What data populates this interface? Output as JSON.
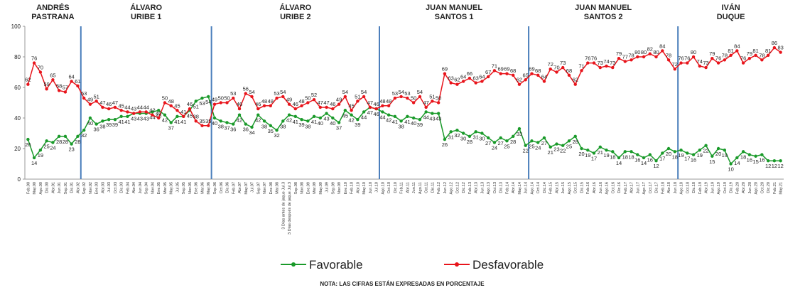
{
  "chart_data": {
    "type": "line",
    "note": "NOTA: LAS CIFRAS ESTÁN EXPRESADAS EN PORCENTAJE",
    "eras": [
      {
        "lines": [
          "ANDRÉS",
          "PASTRANA"
        ],
        "start": 0
      },
      {
        "lines": [
          "ÁLVARO",
          "URIBE 1"
        ],
        "start": 9
      },
      {
        "lines": [
          "ÁLVARO",
          "URIBE 2"
        ],
        "start": 30
      },
      {
        "lines": [
          "JUAN MANUEL",
          "SANTOS 1"
        ],
        "start": 57
      },
      {
        "lines": [
          "JUAN MANUEL",
          "SANTOS 2"
        ],
        "start": 81
      },
      {
        "lines": [
          "IVÁN",
          "DUQUE"
        ],
        "start": 105
      }
    ],
    "categories": [
      "Feb.00",
      "May.00",
      "Ago.00",
      "Dic.00",
      "Abr.01",
      "Jun.01",
      "Sep.01",
      "Dic.01",
      "Abr.02",
      "Sep.02",
      "Nov.02",
      "Ene.03",
      "Abr.03",
      "Jul.03",
      "Oct.03",
      "Dic.03",
      "Feb.04",
      "Abr.04",
      "Jun.04",
      "Sep.04",
      "Nov.04",
      "Ene.05",
      "Mar.05",
      "May.05",
      "Jul.05",
      "Sep.05",
      "Nov.05",
      "Ene.06",
      "Mar.06",
      "May.06",
      "Sep.06",
      "Oct.06",
      "Dic.06",
      "Feb.07",
      "Abr.07",
      "May.07",
      "Jul.07",
      "Sep.07",
      "Nov.07",
      "Ene.08",
      "Mar.08",
      "3 Días antes de jaque Jul.3",
      "3 Días después de jaque Jul.3",
      "Sep.08",
      "Nov.08",
      "Ene.09",
      "Mar.09",
      "May.09",
      "Jul.09",
      "Sep.09",
      "Nov.09",
      "Ene.10",
      "Feb.10",
      "Abr.10",
      "May.10",
      "Jun.10",
      "Jul.10",
      "Ago.10",
      "Oct.10",
      "Dic.10",
      "Feb.11",
      "Abr.11",
      "Jun.11",
      "Ago.11",
      "Oct.11",
      "Dic.11",
      "Feb.12",
      "Jun.12",
      "Ago.12",
      "Oct.12",
      "Dic.12",
      "Feb.13",
      "Abr.13",
      "Jun.13",
      "Ago.13",
      "Oct.13",
      "Dic.13",
      "Feb.14",
      "Abr.14",
      "May.14",
      "Jun.14",
      "Ago.14",
      "Oct.14",
      "Dic.14",
      "Feb.15",
      "Abr.15",
      "Jun.15",
      "Ago.15",
      "Oct.15",
      "Dic.15",
      "Feb.16",
      "Abr.16",
      "Jun.16",
      "Ago.16",
      "Oct.16",
      "Dic.16",
      "Feb.17",
      "Abr.17",
      "Jun.17",
      "Ago.17",
      "Oct.17",
      "Dic.17",
      "Feb.18",
      "Abr.18",
      "Jun.18",
      "Ago.18",
      "Oct.18",
      "Dic.18",
      "Feb.19",
      "Abr.19",
      "Jun.19",
      "Ago.19",
      "Oct.19",
      "Dic.19",
      "Feb.20",
      "Abr.20",
      "Jun.20",
      "Ago.20",
      "Oct.20",
      "Dic.20",
      "Feb.21",
      "May.21"
    ],
    "series": [
      {
        "name": "Favorable",
        "color": "#1a9a2a",
        "values": [
          26,
          14,
          19,
          25,
          24,
          28,
          28,
          23,
          28,
          32,
          40,
          36,
          38,
          39,
          39,
          41,
          41,
          43,
          43,
          43,
          44,
          45,
          42,
          37,
          41,
          41,
          45,
          51,
          53,
          54,
          40,
          38,
          37,
          36,
          42,
          36,
          34,
          42,
          38,
          35,
          32,
          38,
          42,
          41,
          39,
          38,
          41,
          40,
          43,
          40,
          37,
          45,
          42,
          39,
          44,
          47,
          46,
          44,
          42,
          41,
          38,
          41,
          40,
          39,
          44,
          43,
          43,
          26,
          31,
          32,
          30,
          28,
          31,
          30,
          27,
          24,
          27,
          25,
          28,
          33,
          22,
          25,
          24,
          27,
          21,
          23,
          22,
          25,
          28,
          20,
          19,
          17,
          21,
          19,
          18,
          14,
          18,
          18,
          16,
          14,
          16,
          12,
          17,
          20,
          18,
          19,
          17,
          16,
          19,
          22,
          15,
          20,
          19,
          10,
          14,
          18,
          16,
          15,
          16,
          12,
          12,
          12
        ]
      },
      {
        "name": "Desfavorable",
        "color": "#e8141b",
        "values": [
          62,
          76,
          70,
          59,
          65,
          58,
          57,
          64,
          61,
          53,
          49,
          51,
          47,
          46,
          47,
          45,
          44,
          43,
          44,
          44,
          42,
          40,
          50,
          48,
          45,
          41,
          46,
          38,
          35,
          35,
          49,
          50,
          50,
          53,
          46,
          56,
          54,
          46,
          48,
          48,
          53,
          54,
          49,
          46,
          48,
          50,
          52,
          47,
          47,
          46,
          49,
          54,
          45,
          51,
          54,
          47,
          46,
          48,
          48,
          53,
          54,
          53,
          50,
          54,
          47,
          51,
          50,
          69,
          63,
          62,
          64,
          66,
          63,
          64,
          67,
          71,
          69,
          69,
          68,
          62,
          65,
          69,
          68,
          64,
          72,
          70,
          73,
          68,
          62,
          71,
          76,
          76,
          73,
          74,
          73,
          79,
          77,
          78,
          80,
          80,
          82,
          80,
          84,
          78,
          72,
          76,
          76,
          80,
          74,
          73,
          79,
          76,
          78,
          81,
          84,
          76,
          79,
          81,
          78,
          81,
          86,
          83
        ]
      }
    ],
    "ylim": [
      0,
      100
    ],
    "yticks": [
      0,
      20,
      40,
      60,
      80,
      100
    ]
  }
}
